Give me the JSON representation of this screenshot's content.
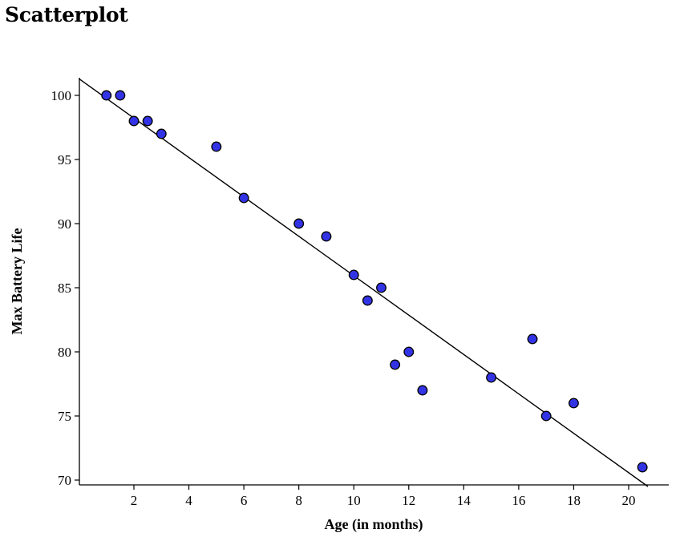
{
  "page": {
    "title": "Scatterplot"
  },
  "chart_data": {
    "type": "scatter",
    "title": "Scatterplot",
    "xlabel": "Age (in months)",
    "ylabel": "Max Battery Life",
    "xlim": [
      0,
      21.5
    ],
    "ylim": [
      69.5,
      101.5
    ],
    "x_ticks": [
      2,
      4,
      6,
      8,
      10,
      12,
      14,
      16,
      18,
      20
    ],
    "y_ticks": [
      70,
      75,
      80,
      85,
      90,
      95,
      100
    ],
    "grid": false,
    "legend": "none",
    "point_color": "#3333e6",
    "point_stroke": "#000000",
    "line_color": "#000000",
    "points": [
      {
        "x": 1,
        "y": 100
      },
      {
        "x": 1.5,
        "y": 100
      },
      {
        "x": 2,
        "y": 98
      },
      {
        "x": 2.5,
        "y": 98
      },
      {
        "x": 3,
        "y": 97
      },
      {
        "x": 5,
        "y": 96
      },
      {
        "x": 6,
        "y": 92
      },
      {
        "x": 8,
        "y": 90
      },
      {
        "x": 9,
        "y": 89
      },
      {
        "x": 10,
        "y": 86
      },
      {
        "x": 10.5,
        "y": 84
      },
      {
        "x": 11,
        "y": 85
      },
      {
        "x": 11.5,
        "y": 79
      },
      {
        "x": 12,
        "y": 80
      },
      {
        "x": 12.5,
        "y": 77
      },
      {
        "x": 15,
        "y": 78
      },
      {
        "x": 16.5,
        "y": 81
      },
      {
        "x": 17,
        "y": 75
      },
      {
        "x": 18,
        "y": 76
      },
      {
        "x": 20.5,
        "y": 71
      }
    ],
    "trend_line": {
      "x": [
        0,
        20.7
      ],
      "y": [
        101.3,
        69.5
      ]
    }
  }
}
